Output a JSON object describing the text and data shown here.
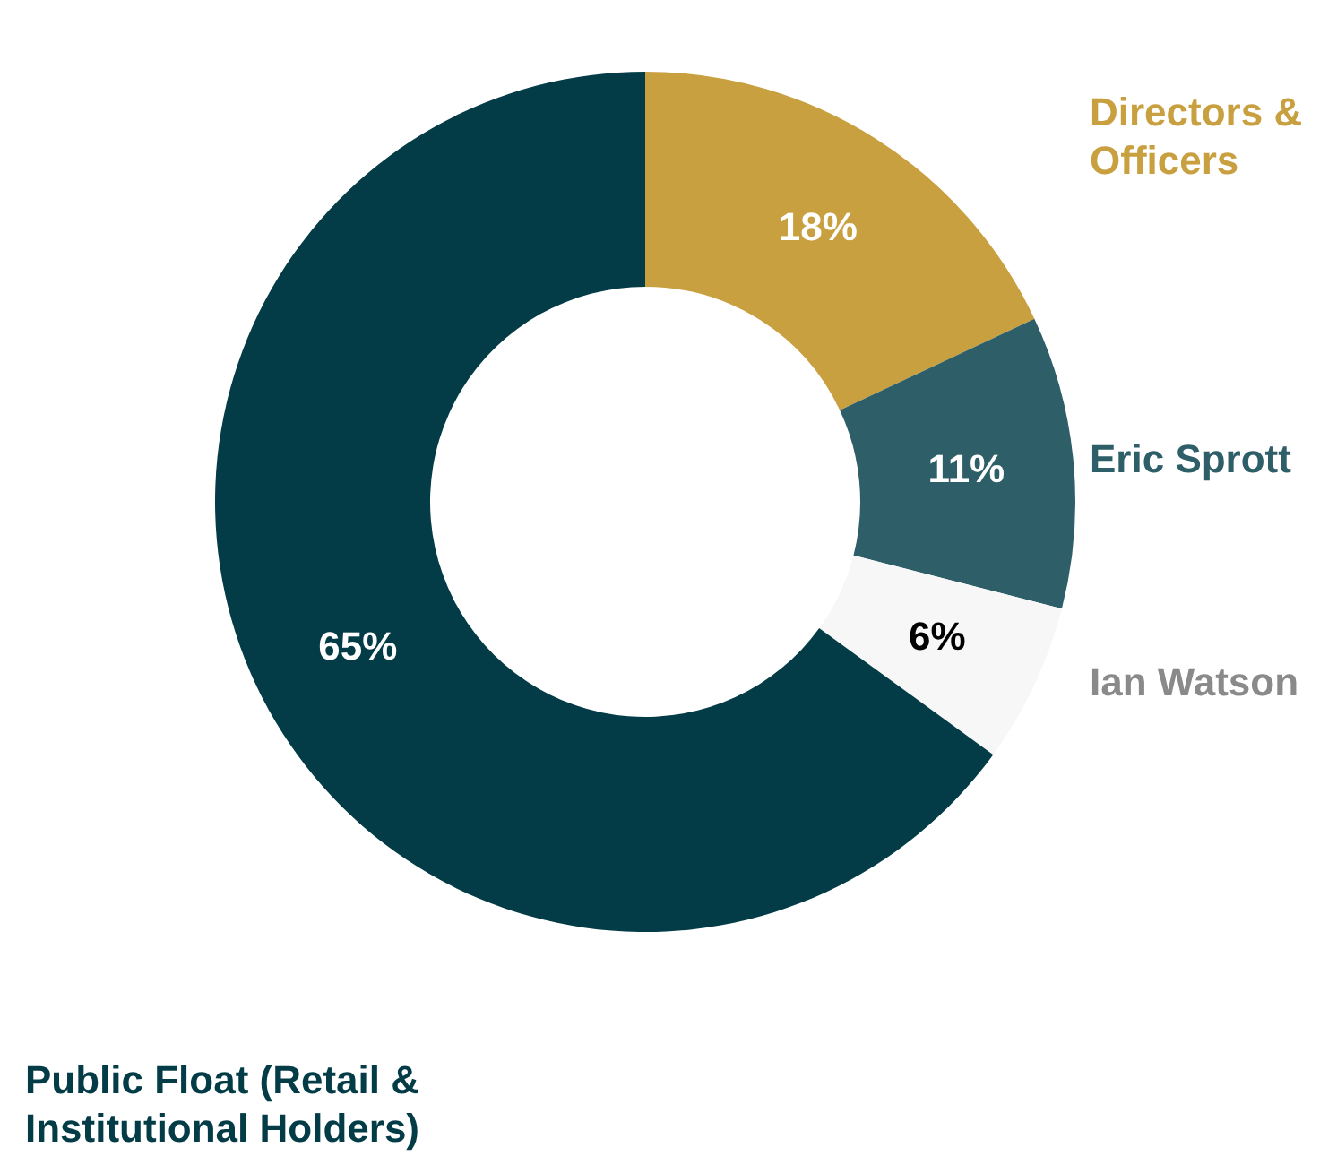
{
  "chart_data": {
    "type": "donut",
    "categories": [
      "Directors & Officers",
      "Eric Sprott",
      "Ian Watson",
      "Public Float (Retail & Institutional Holders)"
    ],
    "values": [
      18,
      11,
      6,
      65
    ],
    "colors": [
      "#c9a040",
      "#2e5f68",
      "#f7f7f7",
      "#033c47"
    ],
    "value_labels": [
      "18%",
      "11%",
      "6%",
      "65%"
    ],
    "legend": false
  }
}
